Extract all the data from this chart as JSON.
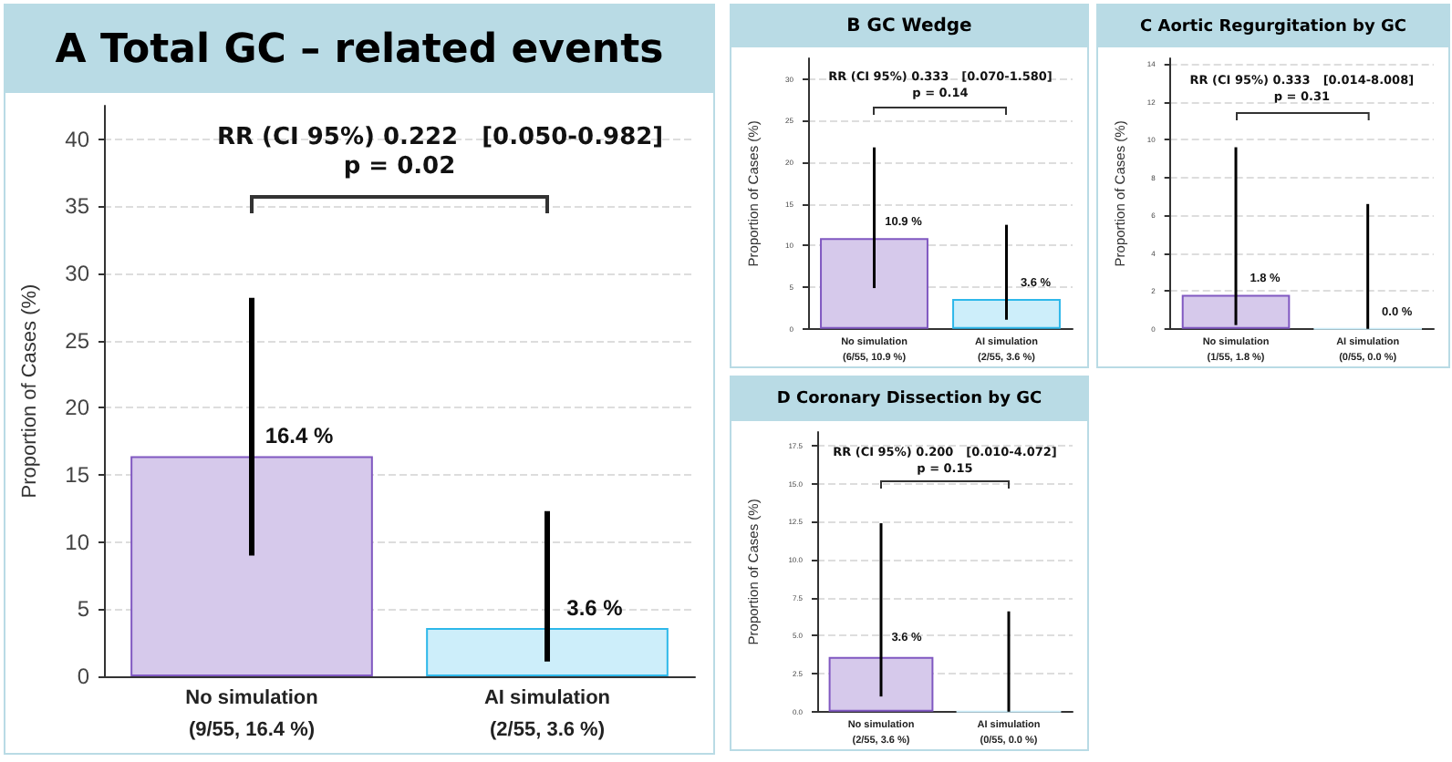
{
  "chart_data": [
    {
      "type": "bar",
      "title": "A  Total GC – related events",
      "ylabel": "Proportion of Cases (%)",
      "categories": [
        "No simulation\n(9/55, 16.4 %)",
        "AI simulation\n(2/55, 3.6 %)"
      ],
      "values": [
        16.4,
        3.6
      ],
      "colors": [
        "#d6c9eb",
        "#cdeefa"
      ],
      "errors": [
        [
          9,
          28.2
        ],
        [
          1.1,
          12.3
        ]
      ],
      "value_labels": [
        "16.4 %",
        "3.6 %"
      ],
      "ylim": [
        0,
        42.5
      ],
      "yticks": [
        0,
        5,
        10,
        15,
        20,
        25,
        30,
        35,
        40
      ],
      "grid": "y",
      "annotations": [
        "RR (CI 95%) 0.222　[0.050-0.982]",
        "p = 0.02"
      ]
    },
    {
      "type": "bar",
      "title": "B  GC Wedge",
      "ylabel": "Proportion of Cases (%)",
      "categories": [
        "No simulation\n(6/55, 10.9 %)",
        "AI simulation\n(2/55, 3.6 %)"
      ],
      "values": [
        10.9,
        3.6
      ],
      "colors": [
        "#d6c9eb",
        "#cdeefa"
      ],
      "errors": [
        [
          4.9,
          21.8
        ],
        [
          1.1,
          12.5
        ]
      ],
      "value_labels": [
        "10.9 %",
        "3.6 %"
      ],
      "ylim": [
        0,
        32.5
      ],
      "yticks": [
        0,
        5,
        10,
        15,
        20,
        25,
        30
      ],
      "grid": "y",
      "annotations": [
        "RR (CI 95%) 0.333　[0.070-1.580]",
        "p = 0.14"
      ]
    },
    {
      "type": "bar",
      "title": "C  Aortic Regurgitation by GC",
      "ylabel": "Proportion of Cases (%)",
      "categories": [
        "No simulation\n(1/55, 1.8 %)",
        "AI simulation\n(0/55, 0.0 %)"
      ],
      "values": [
        1.8,
        0
      ],
      "colors": [
        "#d6c9eb",
        "#cdeefa"
      ],
      "errors": [
        [
          0.2,
          9.6
        ],
        [
          0,
          6.6
        ]
      ],
      "value_labels": [
        "1.8 %",
        "0.0 %"
      ],
      "ylim": [
        0,
        14.3
      ],
      "yticks": [
        0,
        2,
        4,
        6,
        8,
        10,
        12,
        14
      ],
      "grid": "y",
      "annotations": [
        "RR (CI 95%) 0.333　[0.014-8.008]",
        "p = 0.31"
      ]
    },
    {
      "type": "bar",
      "title": "D  Coronary Dissection by GC",
      "ylabel": "Proportion of Cases (%)",
      "categories": [
        "No simulation\n(2/55, 3.6 %)",
        "AI simulation\n(0/55, 0.0 %)"
      ],
      "values": [
        3.6,
        0
      ],
      "colors": [
        "#d6c9eb",
        "#cdeefa"
      ],
      "errors": [
        [
          1.0,
          12.4
        ],
        [
          0,
          6.6
        ]
      ],
      "value_labels": [
        "3.6 %",
        null
      ],
      "ylim": [
        0,
        18.4
      ],
      "yticks": [
        {
          "value": 0,
          "label": "0.0"
        },
        {
          "value": 2.5,
          "label": "2.5"
        },
        {
          "value": 5,
          "label": "5.0"
        },
        {
          "value": 7.5,
          "label": "7.5"
        },
        {
          "value": 10,
          "label": "10.0"
        },
        {
          "value": 12.5,
          "label": "12.5"
        },
        {
          "value": 15,
          "label": "15.0"
        },
        {
          "value": 17.5,
          "label": "17.5"
        }
      ],
      "grid": "y",
      "annotations": [
        "RR (CI 95%) 0.200　[0.010-4.072]",
        "p = 0.15"
      ]
    }
  ]
}
